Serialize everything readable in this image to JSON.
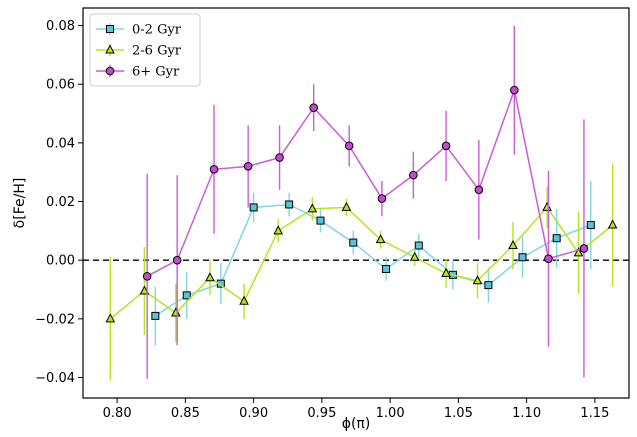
{
  "chart_data": {
    "type": "line",
    "xlabel": "ϕ(π)",
    "ylabel": "δ[Fe/H]",
    "xlim": [
      0.775,
      1.175
    ],
    "ylim": [
      -0.047,
      0.086
    ],
    "xticks": [
      0.8,
      0.85,
      0.9,
      0.95,
      1.0,
      1.05,
      1.1,
      1.15
    ],
    "xtick_labels": [
      "0.80",
      "0.85",
      "0.90",
      "0.95",
      "1.00",
      "1.05",
      "1.10",
      "1.15"
    ],
    "yticks": [
      -0.04,
      -0.02,
      0.0,
      0.02,
      0.04,
      0.06,
      0.08
    ],
    "ytick_labels": [
      "−0.04",
      "−0.02",
      "0.00",
      "0.02",
      "0.04",
      "0.06",
      "0.08"
    ],
    "reference_line": {
      "y": 0.0,
      "style": "dashed",
      "color": "#000000"
    },
    "grid": false,
    "legend_position": "top-left",
    "series": [
      {
        "name": "0-2 Gyr",
        "color": "#7fd7e6",
        "marker": "square",
        "marker_fill": "#5bc3d6",
        "x": [
          0.828,
          0.851,
          0.876,
          0.9,
          0.926,
          0.949,
          0.973,
          0.997,
          1.021,
          1.046,
          1.072,
          1.097,
          1.122,
          1.147
        ],
        "y": [
          -0.019,
          -0.012,
          -0.008,
          0.018,
          0.019,
          0.0135,
          0.006,
          -0.003,
          0.005,
          -0.005,
          -0.0085,
          0.001,
          0.0075,
          0.012
        ],
        "err": [
          0.01,
          0.008,
          0.007,
          0.005,
          0.004,
          0.004,
          0.004,
          0.004,
          0.004,
          0.005,
          0.006,
          0.007,
          0.01,
          0.015
        ]
      },
      {
        "name": "2-6 Gyr",
        "color": "#b5e61d",
        "marker": "triangle",
        "marker_fill": "#b5e61d",
        "x": [
          0.795,
          0.82,
          0.843,
          0.868,
          0.893,
          0.918,
          0.943,
          0.968,
          0.993,
          1.018,
          1.041,
          1.064,
          1.09,
          1.115,
          1.138,
          1.163
        ],
        "y": [
          -0.02,
          -0.0105,
          -0.018,
          -0.006,
          -0.014,
          0.01,
          0.0175,
          0.018,
          0.007,
          0.001,
          -0.0045,
          -0.007,
          0.005,
          0.018,
          0.0025,
          0.012
        ],
        "err": [
          0.021,
          0.015,
          0.01,
          0.006,
          0.006,
          0.004,
          0.004,
          0.003,
          0.003,
          0.003,
          0.005,
          0.006,
          0.008,
          0.007,
          0.014,
          0.021
        ]
      },
      {
        "name": "6+ Gyr",
        "color": "#cc5cd6",
        "marker": "circle",
        "marker_fill": "#c14ad0",
        "x": [
          0.822,
          0.844,
          0.871,
          0.896,
          0.919,
          0.944,
          0.97,
          0.994,
          1.017,
          1.041,
          1.065,
          1.091,
          1.116,
          1.142
        ],
        "y": [
          -0.0055,
          0.0,
          0.031,
          0.032,
          0.035,
          0.052,
          0.039,
          0.021,
          0.029,
          0.039,
          0.024,
          0.058,
          0.0005,
          0.004
        ],
        "err": [
          0.035,
          0.029,
          0.022,
          0.014,
          0.011,
          0.008,
          0.007,
          0.006,
          0.008,
          0.012,
          0.017,
          0.022,
          0.03,
          0.044
        ]
      }
    ]
  }
}
